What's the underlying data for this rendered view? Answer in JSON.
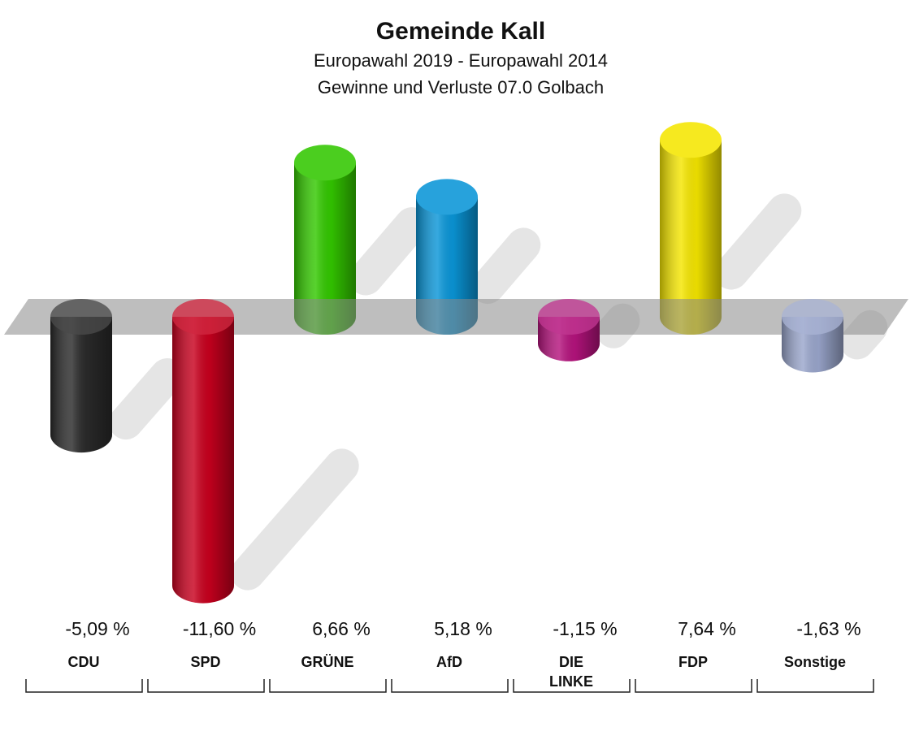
{
  "chart_data": {
    "type": "bar",
    "title": "Gemeinde Kall",
    "subtitle": [
      "Europawahl 2019 - Europawahl 2014",
      "Gewinne und Verluste 07.0 Golbach"
    ],
    "categories": [
      "CDU",
      "SPD",
      "GRÜNE",
      "AfD",
      "DIE LINKE",
      "FDP",
      "Sonstige"
    ],
    "values": [
      -5.09,
      -11.6,
      6.66,
      5.18,
      -1.15,
      7.64,
      -1.63
    ],
    "value_labels": [
      "-5,09 %",
      "-11,60 %",
      "6,66 %",
      "5,18 %",
      "-1,15 %",
      "7,64 %",
      "-1,63 %"
    ],
    "colors": [
      "#2a2a2a",
      "#c8001e",
      "#33c800",
      "#0a96d8",
      "#b5137d",
      "#f5e600",
      "#9aa6cc"
    ]
  }
}
